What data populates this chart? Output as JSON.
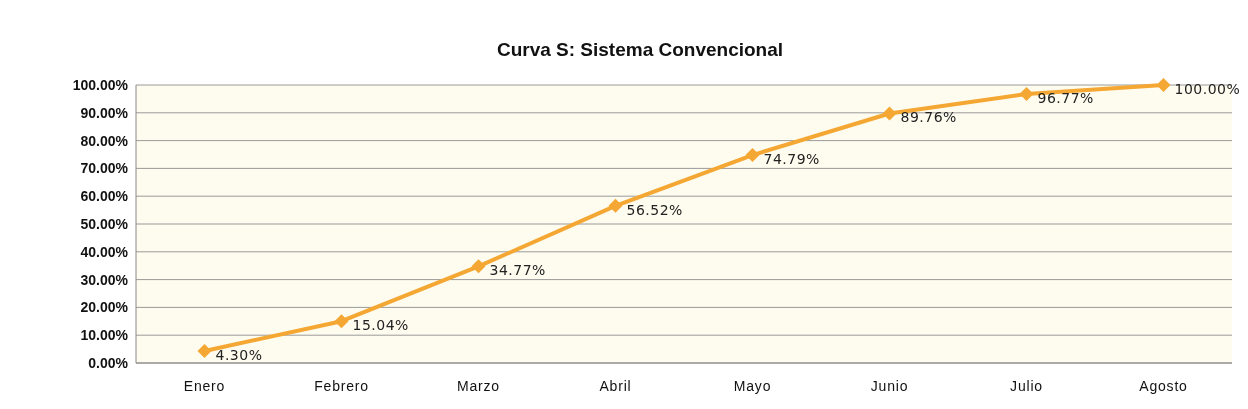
{
  "chart_data": {
    "type": "line",
    "title": "Curva S: Sistema Convencional",
    "categories": [
      "Enero",
      "Febrero",
      "Marzo",
      "Abril",
      "Mayo",
      "Junio",
      "Julio",
      "Agosto"
    ],
    "series": [
      {
        "color": "#f5a733",
        "values": [
          4.3,
          15.04,
          34.77,
          56.52,
          74.79,
          89.76,
          96.77,
          100.0
        ],
        "value_labels": [
          "4.30%",
          "15.04%",
          "34.77%",
          "56.52%",
          "74.79%",
          "89.76%",
          "96.77%",
          "100.00%"
        ]
      }
    ],
    "ylim": [
      0,
      100
    ],
    "yticks": [
      {
        "value": 0,
        "label": "0.00%"
      },
      {
        "value": 10,
        "label": "10.00%"
      },
      {
        "value": 20,
        "label": "20.00%"
      },
      {
        "value": 30,
        "label": "30.00%"
      },
      {
        "value": 40,
        "label": "40.00%"
      },
      {
        "value": 50,
        "label": "50.00%"
      },
      {
        "value": 60,
        "label": "60.00%"
      },
      {
        "value": 70,
        "label": "70.00%"
      },
      {
        "value": 80,
        "label": "80.00%"
      },
      {
        "value": 90,
        "label": "90.00%"
      },
      {
        "value": 100,
        "label": "100.00%"
      }
    ],
    "grid": "y",
    "marker": "diamond",
    "line_style": "solid"
  }
}
